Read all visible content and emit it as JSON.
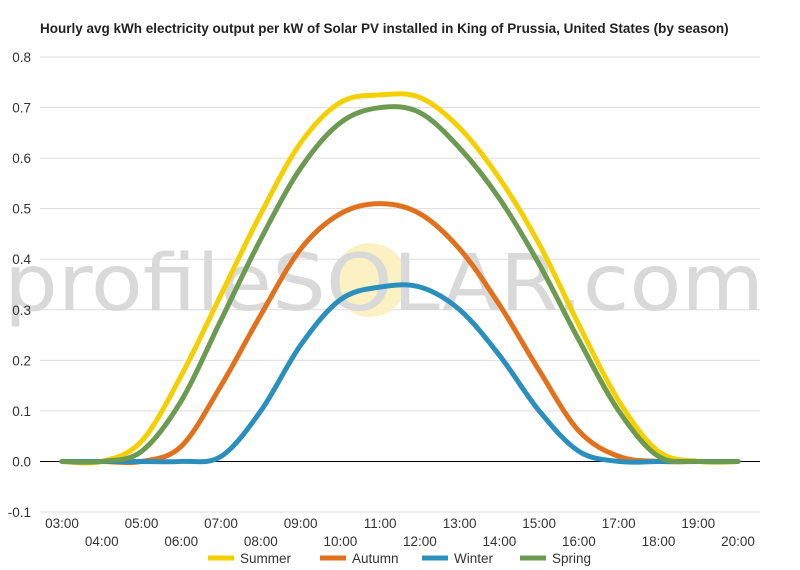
{
  "chart_data": {
    "type": "line",
    "title": "Hourly avg kWh electricity output per kW of Solar PV installed in King of Prussia, United States (by season)",
    "xlabel": "",
    "ylabel": "",
    "ylim": [
      -0.1,
      0.8
    ],
    "yticks": [
      "0.8",
      "0.7",
      "0.6",
      "0.5",
      "0.4",
      "0.3",
      "0.2",
      "0.1",
      "0.0",
      "-0.1"
    ],
    "ytick_values": [
      0.8,
      0.7,
      0.6,
      0.5,
      0.4,
      0.3,
      0.2,
      0.1,
      0.0,
      -0.1
    ],
    "x": [
      3,
      4,
      5,
      6,
      7,
      8,
      9,
      10,
      11,
      12,
      13,
      14,
      15,
      16,
      17,
      18,
      19,
      20
    ],
    "xticks_upper": [
      "03:00",
      "05:00",
      "07:00",
      "09:00",
      "11:00",
      "13:00",
      "15:00",
      "17:00",
      "19:00"
    ],
    "xticks_lower": [
      "04:00",
      "06:00",
      "08:00",
      "10:00",
      "12:00",
      "14:00",
      "16:00",
      "18:00",
      "20:00"
    ],
    "grid": true,
    "legend_position": "bottom",
    "watermark": "profileSOLAR.com",
    "series": [
      {
        "name": "Summer",
        "color": "#f5d000",
        "values": [
          0.0,
          0.0,
          0.04,
          0.17,
          0.33,
          0.49,
          0.63,
          0.71,
          0.725,
          0.72,
          0.66,
          0.56,
          0.43,
          0.27,
          0.12,
          0.02,
          0.0,
          0.0
        ]
      },
      {
        "name": "Autumn",
        "color": "#e2711d",
        "values": [
          0.0,
          0.0,
          0.0,
          0.03,
          0.15,
          0.29,
          0.42,
          0.49,
          0.51,
          0.49,
          0.42,
          0.31,
          0.18,
          0.06,
          0.01,
          0.0,
          0.0,
          0.0
        ]
      },
      {
        "name": "Winter",
        "color": "#2b8fbe",
        "values": [
          0.0,
          0.0,
          0.0,
          0.0,
          0.01,
          0.1,
          0.23,
          0.32,
          0.345,
          0.345,
          0.3,
          0.21,
          0.1,
          0.02,
          0.0,
          0.0,
          0.0,
          0.0
        ]
      },
      {
        "name": "Spring",
        "color": "#6d9a51",
        "values": [
          0.0,
          0.0,
          0.02,
          0.12,
          0.28,
          0.44,
          0.58,
          0.67,
          0.7,
          0.69,
          0.62,
          0.52,
          0.39,
          0.24,
          0.1,
          0.01,
          0.0,
          0.0
        ]
      }
    ]
  }
}
